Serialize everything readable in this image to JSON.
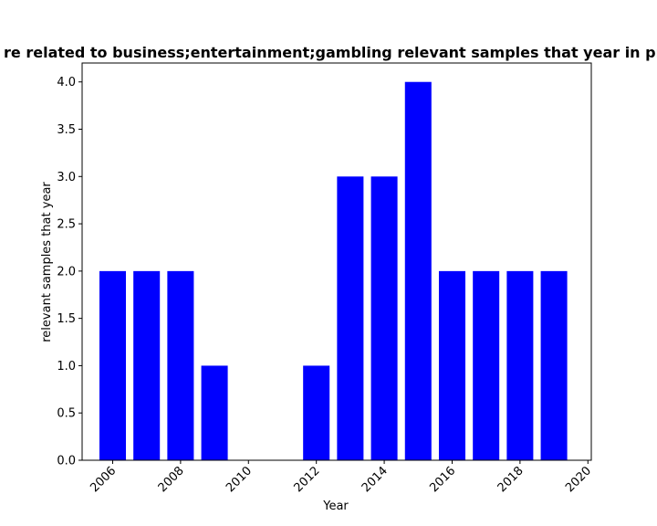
{
  "chart_data": {
    "type": "bar",
    "title": "re related to business;entertainment;gambling relevant samples that year in pri",
    "xlabel": "Year",
    "ylabel": "relevant samples that year",
    "x": [
      2006,
      2007,
      2008,
      2009,
      2010,
      2011,
      2012,
      2013,
      2014,
      2015,
      2016,
      2017,
      2018,
      2019
    ],
    "values": [
      2,
      2,
      2,
      1,
      0,
      0,
      1,
      3,
      3,
      4,
      2,
      2,
      2,
      2
    ],
    "xlim": [
      2005.1,
      2020.1
    ],
    "ylim": [
      0,
      4.2
    ],
    "x_ticks": [
      2006,
      2008,
      2010,
      2012,
      2014,
      2016,
      2018,
      2020
    ],
    "y_ticks": [
      "0.0",
      "0.5",
      "1.0",
      "1.5",
      "2.0",
      "2.5",
      "3.0",
      "3.5",
      "4.0"
    ],
    "bar_color": "#0000ff",
    "grid": false,
    "legend": "none"
  }
}
